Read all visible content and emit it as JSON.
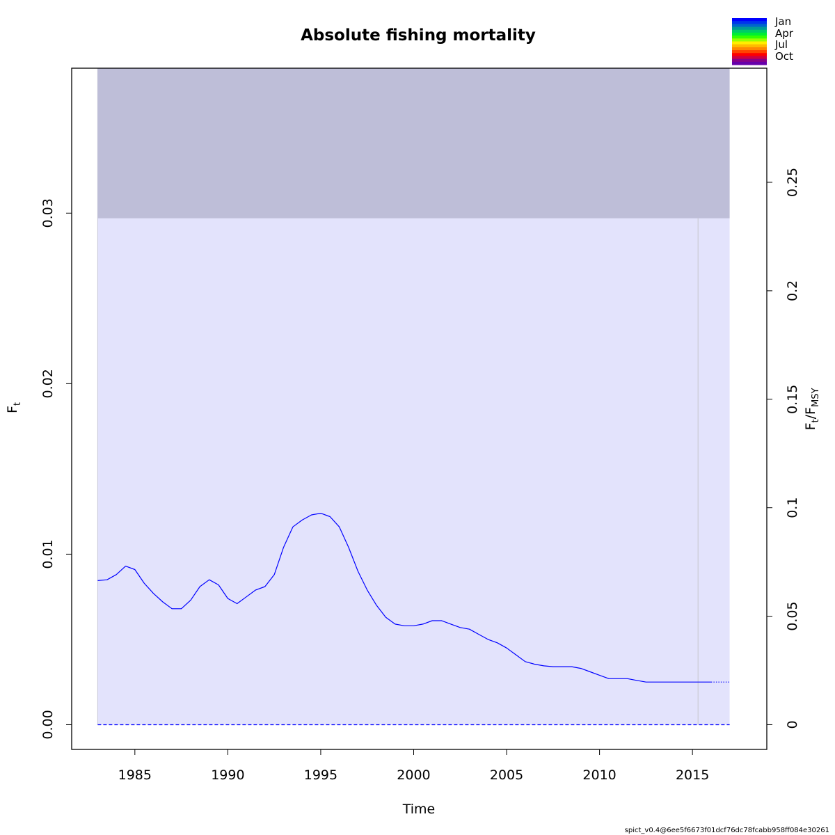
{
  "chart_data": {
    "type": "line",
    "title": "Absolute fishing mortality",
    "xlabel": "Time",
    "ylabel": "F_t",
    "ylabel_main": "F",
    "ylabel_sub": "t",
    "y2label": "F_t/F_MSY",
    "y2label_main1": "F",
    "y2label_sub1": "t",
    "y2label_slash": "/F",
    "y2label_sub2": "MSY",
    "xlim": [
      1981.6,
      2019.0
    ],
    "ylim": [
      -0.00145,
      0.0385
    ],
    "y2lim": [
      -0.0114,
      0.3026
    ],
    "x_ticks": [
      1985,
      1990,
      1995,
      2000,
      2005,
      2010,
      2015
    ],
    "x_tick_labels": [
      "1985",
      "1990",
      "1995",
      "2000",
      "2005",
      "2010",
      "2015"
    ],
    "y_ticks": [
      0,
      0.01,
      0.02,
      0.03
    ],
    "y_tick_labels": [
      "0.00",
      "0.01",
      "0.02",
      "0.03"
    ],
    "y2_ticks": [
      0,
      0.05,
      0.1,
      0.15,
      0.2,
      0.25
    ],
    "y2_tick_labels": [
      "0",
      "0.05",
      "0.1",
      "0.15",
      "0.2",
      "0.25"
    ],
    "ci_band": {
      "x_start": 1983.0,
      "x_end": 2017.0,
      "lower": 0.0,
      "upper": 0.0385,
      "color": "#e3e3fc"
    },
    "fmsy_band": {
      "x_start": 1983.0,
      "x_end": 2017.0,
      "lower": 0.0297,
      "upper": 0.0385,
      "color": "#bebed8"
    },
    "vline": {
      "x": 2015.3,
      "color": "#c6c6cc"
    },
    "series": [
      {
        "style": "solid",
        "color": "#0000ff",
        "x": [
          1983.0,
          1983.5,
          1984.0,
          1984.5,
          1985.0,
          1985.5,
          1986.0,
          1986.5,
          1987.0,
          1987.5,
          1988.0,
          1988.5,
          1989.0,
          1989.5,
          1990.0,
          1990.5,
          1991.0,
          1991.5,
          1992.0,
          1992.5,
          1993.0,
          1993.5,
          1994.0,
          1994.5,
          1995.0,
          1995.5,
          1996.0,
          1996.5,
          1997.0,
          1997.5,
          1998.0,
          1998.5,
          1999.0,
          1999.5,
          2000.0,
          2000.5,
          2001.0,
          2001.5,
          2002.0,
          2002.5,
          2003.0,
          2003.5,
          2004.0,
          2004.5,
          2005.0,
          2005.5,
          2006.0,
          2006.5,
          2007.0,
          2007.5,
          2008.0,
          2008.5,
          2009.0,
          2009.5,
          2010.0,
          2010.5,
          2011.0,
          2011.5,
          2012.0,
          2012.5,
          2013.0,
          2013.5,
          2014.0,
          2014.5,
          2015.0,
          2015.5,
          2016.0
        ],
        "y": [
          0.00845,
          0.0085,
          0.0088,
          0.0093,
          0.0091,
          0.0083,
          0.0077,
          0.0072,
          0.0068,
          0.0068,
          0.0073,
          0.0081,
          0.0085,
          0.0082,
          0.0074,
          0.0071,
          0.0075,
          0.0079,
          0.0081,
          0.0088,
          0.0104,
          0.0116,
          0.012,
          0.0123,
          0.0124,
          0.0122,
          0.0116,
          0.0104,
          0.009,
          0.0079,
          0.007,
          0.0063,
          0.0059,
          0.0058,
          0.0058,
          0.0059,
          0.0061,
          0.0061,
          0.0059,
          0.0057,
          0.0056,
          0.0053,
          0.005,
          0.0048,
          0.0045,
          0.0041,
          0.0037,
          0.00355,
          0.00345,
          0.0034,
          0.0034,
          0.0034,
          0.0033,
          0.0031,
          0.0029,
          0.0027,
          0.0027,
          0.0027,
          0.0026,
          0.0025,
          0.0025,
          0.0025,
          0.0025,
          0.0025,
          0.0025,
          0.0025,
          0.0025
        ]
      },
      {
        "style": "dotted",
        "color": "#0000ff",
        "x": [
          2016.0,
          2017.0
        ],
        "y": [
          0.0025,
          0.0025
        ]
      },
      {
        "style": "dashed",
        "color": "#0000ff",
        "x": [
          1983.0,
          2017.0
        ],
        "y": [
          0.0,
          0.0
        ]
      }
    ],
    "legend": {
      "position": "top-right",
      "labels": [
        "Jan",
        "Apr",
        "Jul",
        "Oct"
      ],
      "colors": [
        "#0000ff",
        "#0033ee",
        "#0066cc",
        "#009999",
        "#00cc66",
        "#00ee33",
        "#33ff00",
        "#99ff00",
        "#ffee00",
        "#ffbb00",
        "#ff8800",
        "#ff4400",
        "#ff0000",
        "#cc0044",
        "#880088",
        "#6600aa"
      ]
    },
    "annotation": "spict_v0.4@6ee5f6673f01dcf76dc78fcabb958ff084e30261"
  }
}
